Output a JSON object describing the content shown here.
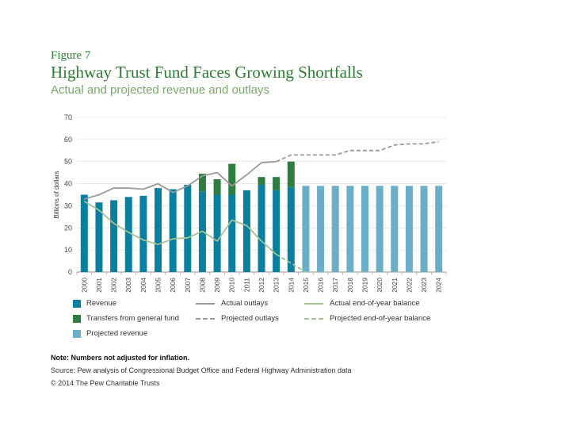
{
  "figure_label": "Figure 7",
  "title": "Highway Trust Fund Faces Growing Shortfalls",
  "subtitle": "Actual and projected revenue and outlays",
  "note": "Note: Numbers not adjusted for inflation.",
  "source": "Source: Pew analysis of Congressional Budget Office and Federal Highway Administration data",
  "copyright": "© 2014 The Pew Charitable Trusts",
  "legend": {
    "revenue": "Revenue",
    "transfers": "Transfers from general fund",
    "projected_revenue": "Projected revenue",
    "actual_outlays": "Actual outlays",
    "projected_outlays": "Projected outlays",
    "actual_balance": "Actual end-of-year balance",
    "projected_balance": "Projected end-of-year balance"
  },
  "colors": {
    "revenue": "#0a7fa0",
    "transfers": "#2e7d3f",
    "projected_revenue": "#6aaec8",
    "outlays": "#999999",
    "balance": "#a3c293"
  },
  "chart_data": {
    "type": "bar",
    "ylabel": "Billions of dollars",
    "ylim": [
      0,
      70
    ],
    "yticks": [
      0,
      10,
      20,
      30,
      40,
      50,
      60,
      70
    ],
    "categories": [
      "2000",
      "2001",
      "2002",
      "2003",
      "2004",
      "2005",
      "2006",
      "2007",
      "2008",
      "2009",
      "2010",
      "2011",
      "2012",
      "2013",
      "2014",
      "2015",
      "2016",
      "2017",
      "2018",
      "2019",
      "2020",
      "2021",
      "2022",
      "2023",
      "2024"
    ],
    "series": [
      {
        "name": "Revenue",
        "kind": "bar",
        "values": [
          35,
          31.5,
          32.5,
          34,
          34.5,
          38,
          37.5,
          39.5,
          36.5,
          35,
          35,
          37,
          39.5,
          37,
          38.5,
          null,
          null,
          null,
          null,
          null,
          null,
          null,
          null,
          null,
          null
        ]
      },
      {
        "name": "Transfers from general fund",
        "kind": "bar-stack",
        "values": [
          0,
          0,
          0,
          0,
          0,
          0,
          0,
          0,
          8,
          7,
          14,
          0,
          3.5,
          6,
          11.5,
          null,
          null,
          null,
          null,
          null,
          null,
          null,
          null,
          null,
          null
        ]
      },
      {
        "name": "Projected revenue",
        "kind": "bar",
        "values": [
          null,
          null,
          null,
          null,
          null,
          null,
          null,
          null,
          null,
          null,
          null,
          null,
          null,
          null,
          null,
          39,
          39,
          39,
          39,
          39,
          39,
          39,
          39,
          39,
          39
        ]
      },
      {
        "name": "Actual outlays",
        "kind": "line",
        "values": [
          33,
          35,
          38,
          38,
          37.5,
          40,
          36,
          39,
          43.5,
          45,
          39,
          44,
          49.5,
          50,
          null,
          null,
          null,
          null,
          null,
          null,
          null,
          null,
          null,
          null,
          null
        ]
      },
      {
        "name": "Projected outlays",
        "kind": "dashed-line",
        "values": [
          null,
          null,
          null,
          null,
          null,
          null,
          null,
          null,
          null,
          null,
          null,
          null,
          null,
          50,
          53,
          53,
          53,
          53,
          55,
          55,
          55,
          57.5,
          58,
          58,
          59
        ]
      },
      {
        "name": "Actual end-of-year balance",
        "kind": "line",
        "values": [
          32,
          28,
          22,
          18,
          14.5,
          12.5,
          15,
          15.5,
          18.5,
          14,
          23.5,
          21,
          14,
          8,
          null,
          null,
          null,
          null,
          null,
          null,
          null,
          null,
          null,
          null,
          null
        ]
      },
      {
        "name": "Projected end-of-year balance",
        "kind": "dashed-line",
        "values": [
          null,
          null,
          null,
          null,
          null,
          null,
          null,
          null,
          null,
          null,
          null,
          null,
          null,
          8,
          4,
          0,
          null,
          null,
          null,
          null,
          null,
          null,
          null,
          null,
          null
        ]
      }
    ]
  }
}
